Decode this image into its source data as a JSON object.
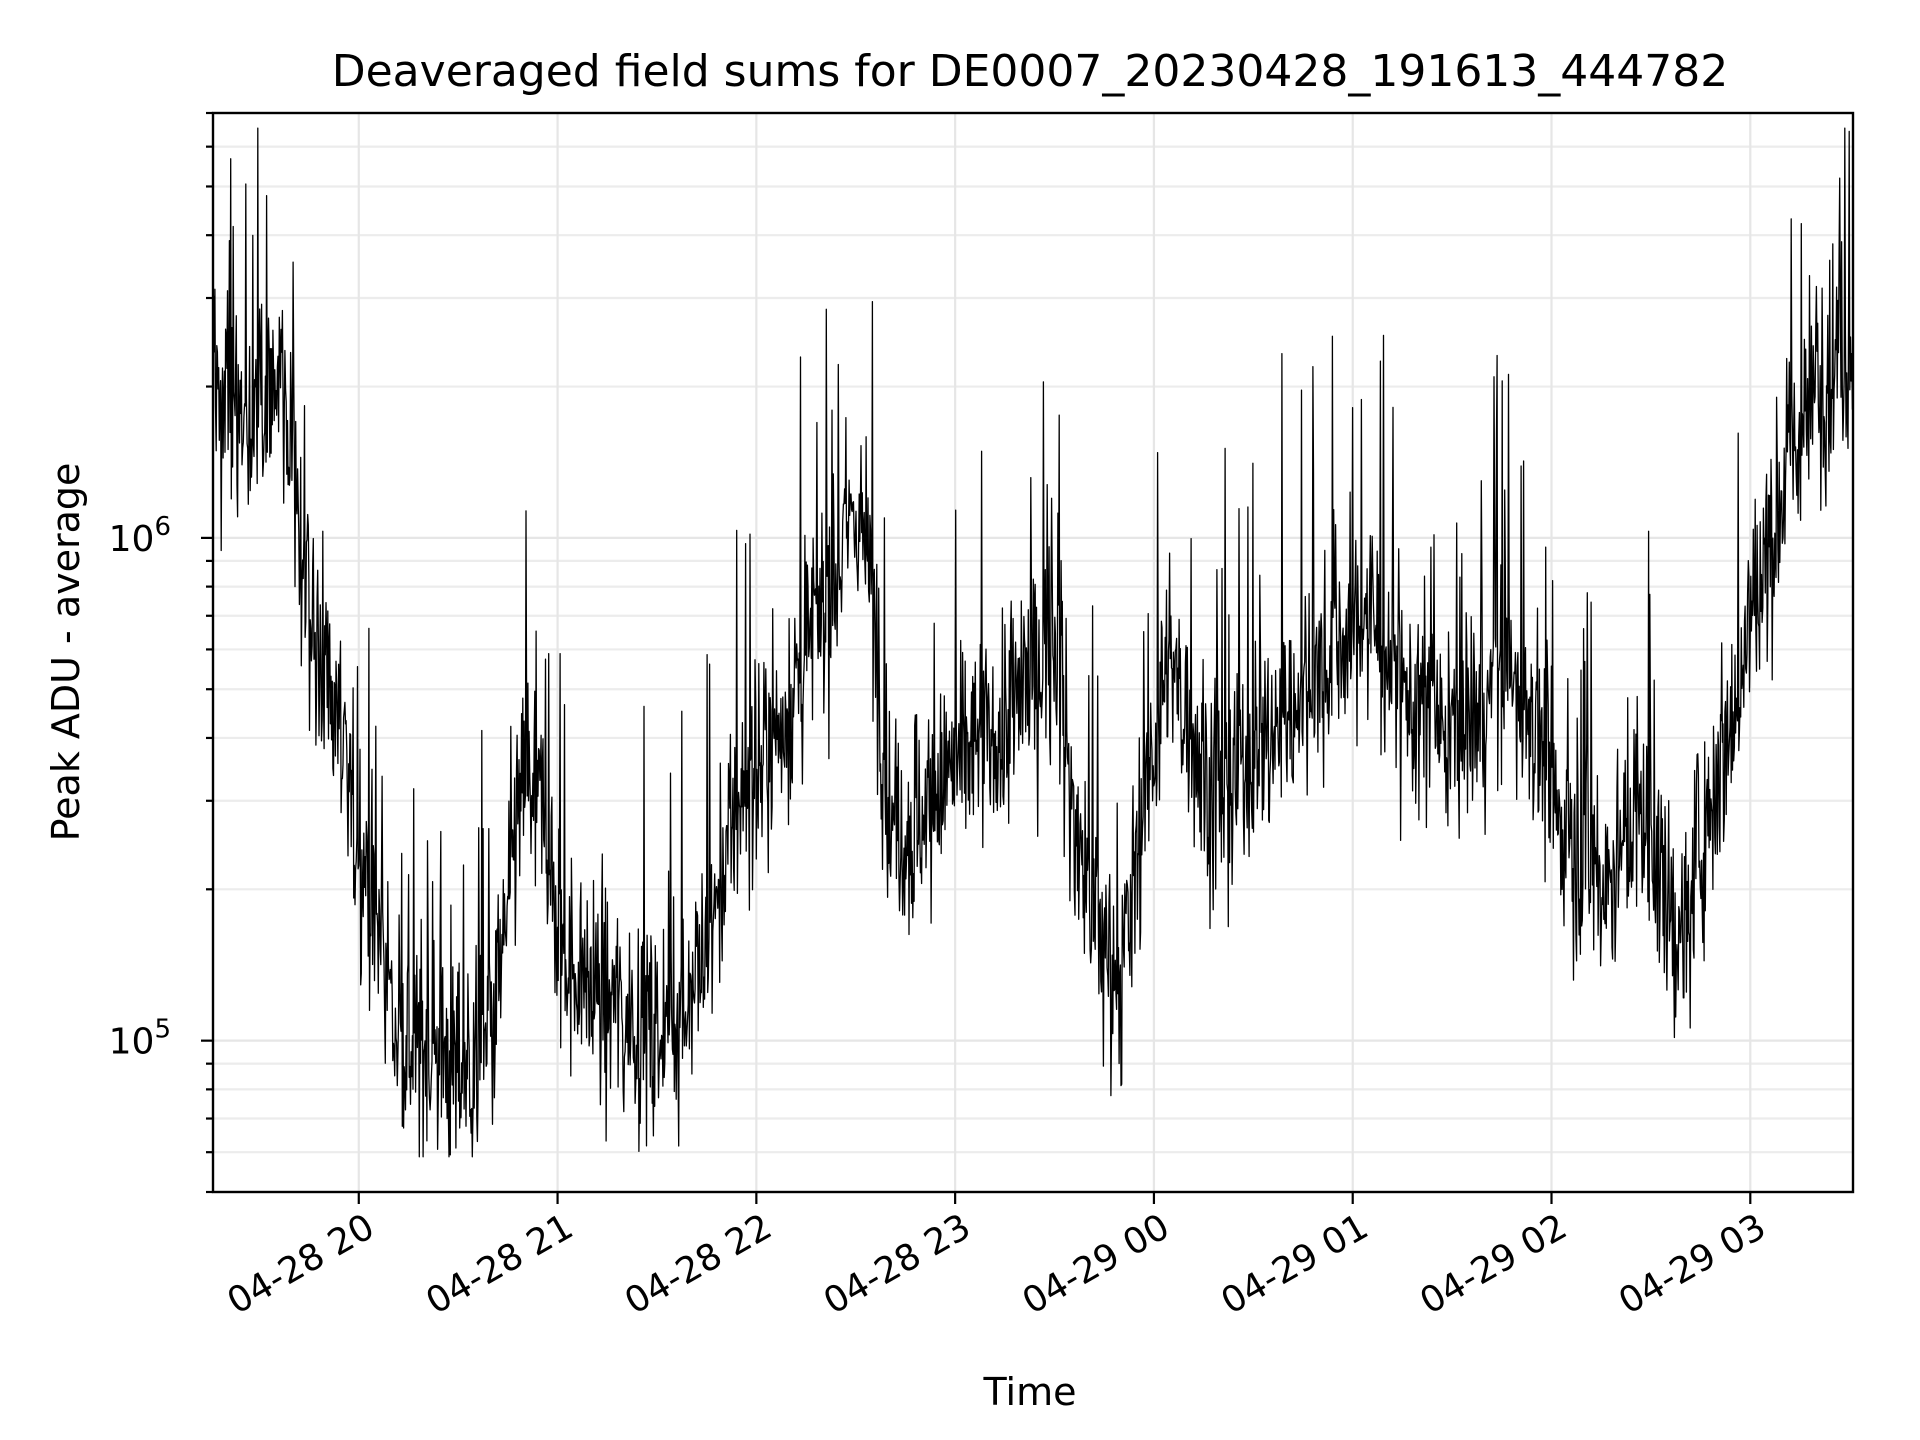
{
  "chart_data": {
    "type": "line",
    "title": "Deaveraged field sums for DE0007_20230428_191613_444782",
    "xlabel": "Time",
    "ylabel": "Peak ADU - average",
    "yscale": "log",
    "ylim": [
      50000,
      7000000
    ],
    "xlim": [
      "2023-04-28 19:16",
      "2023-04-29 03:31"
    ],
    "grid": true,
    "x_ticks": [
      {
        "value": "2023-04-28 20:00",
        "label": "04-28 20"
      },
      {
        "value": "2023-04-28 21:00",
        "label": "04-28 21"
      },
      {
        "value": "2023-04-28 22:00",
        "label": "04-28 22"
      },
      {
        "value": "2023-04-28 23:00",
        "label": "04-28 23"
      },
      {
        "value": "2023-04-29 00:00",
        "label": "04-29 00"
      },
      {
        "value": "2023-04-29 01:00",
        "label": "04-29 01"
      },
      {
        "value": "2023-04-29 02:00",
        "label": "04-29 02"
      },
      {
        "value": "2023-04-29 03:00",
        "label": "04-29 03"
      }
    ],
    "y_ticks": [
      {
        "value": 100000,
        "label_base": "10",
        "label_exp": "5"
      },
      {
        "value": 1000000,
        "label_base": "10",
        "label_exp": "6"
      }
    ],
    "series_color": "#000000",
    "series": [
      {
        "x": [
          "2023-04-28 19:16",
          "2023-04-28 19:20",
          "2023-04-28 19:25",
          "2023-04-28 19:30",
          "2023-04-28 19:35",
          "2023-04-28 19:40",
          "2023-04-28 19:45",
          "2023-04-28 19:50",
          "2023-04-28 19:55",
          "2023-04-28 20:00",
          "2023-04-28 20:05",
          "2023-04-28 20:10",
          "2023-04-28 20:15",
          "2023-04-28 20:20",
          "2023-04-28 20:25",
          "2023-04-28 20:30",
          "2023-04-28 20:35",
          "2023-04-28 20:40",
          "2023-04-28 20:45",
          "2023-04-28 20:50",
          "2023-04-28 20:55",
          "2023-04-28 21:00",
          "2023-04-28 21:05",
          "2023-04-28 21:10",
          "2023-04-28 21:15",
          "2023-04-28 21:20",
          "2023-04-28 21:25",
          "2023-04-28 21:30",
          "2023-04-28 21:35",
          "2023-04-28 21:40",
          "2023-04-28 21:45",
          "2023-04-28 21:50",
          "2023-04-28 21:55",
          "2023-04-28 22:00",
          "2023-04-28 22:05",
          "2023-04-28 22:10",
          "2023-04-28 22:15",
          "2023-04-28 22:20",
          "2023-04-28 22:25",
          "2023-04-28 22:30",
          "2023-04-28 22:35",
          "2023-04-28 22:40",
          "2023-04-28 22:45",
          "2023-04-28 22:50",
          "2023-04-28 22:55",
          "2023-04-28 23:00",
          "2023-04-28 23:05",
          "2023-04-28 23:10",
          "2023-04-28 23:15",
          "2023-04-28 23:20",
          "2023-04-28 23:25",
          "2023-04-28 23:30",
          "2023-04-28 23:35",
          "2023-04-28 23:40",
          "2023-04-28 23:45",
          "2023-04-28 23:50",
          "2023-04-28 23:55",
          "2023-04-29 00:00",
          "2023-04-29 00:05",
          "2023-04-29 00:10",
          "2023-04-29 00:15",
          "2023-04-29 00:20",
          "2023-04-29 00:25",
          "2023-04-29 00:30",
          "2023-04-29 00:35",
          "2023-04-29 00:40",
          "2023-04-29 00:45",
          "2023-04-29 00:50",
          "2023-04-29 00:55",
          "2023-04-29 01:00",
          "2023-04-29 01:05",
          "2023-04-29 01:10",
          "2023-04-29 01:15",
          "2023-04-29 01:20",
          "2023-04-29 01:25",
          "2023-04-29 01:30",
          "2023-04-29 01:35",
          "2023-04-29 01:40",
          "2023-04-29 01:45",
          "2023-04-29 01:50",
          "2023-04-29 01:55",
          "2023-04-29 02:00",
          "2023-04-29 02:05",
          "2023-04-29 02:10",
          "2023-04-29 02:15",
          "2023-04-29 02:20",
          "2023-04-29 02:25",
          "2023-04-29 02:30",
          "2023-04-29 02:35",
          "2023-04-29 02:40",
          "2023-04-29 02:45",
          "2023-04-29 02:50",
          "2023-04-29 02:55",
          "2023-04-29 03:00",
          "2023-04-29 03:05",
          "2023-04-29 03:10",
          "2023-04-29 03:15",
          "2023-04-29 03:20",
          "2023-04-29 03:25",
          "2023-04-29 03:31"
        ],
        "y": [
          2000000,
          2200000,
          1700000,
          1800000,
          2100000,
          1500000,
          700000,
          550000,
          380000,
          250000,
          170000,
          120000,
          100000,
          95000,
          90000,
          88000,
          90000,
          100000,
          180000,
          350000,
          300000,
          160000,
          140000,
          130000,
          120000,
          115000,
          110000,
          108000,
          115000,
          130000,
          150000,
          220000,
          300000,
          350000,
          400000,
          480000,
          600000,
          750000,
          900000,
          1200000,
          800000,
          300000,
          260000,
          280000,
          320000,
          350000,
          380000,
          400000,
          420000,
          500000,
          550000,
          650000,
          300000,
          200000,
          150000,
          130000,
          250000,
          400000,
          550000,
          450000,
          350000,
          300000,
          320000,
          380000,
          400000,
          450000,
          500000,
          550000,
          600000,
          650000,
          700000,
          600000,
          500000,
          450000,
          420000,
          400000,
          420000,
          480000,
          550000,
          500000,
          450000,
          300000,
          250000,
          220000,
          210000,
          230000,
          280000,
          260000,
          180000,
          160000,
          250000,
          350000,
          450000,
          700000,
          900000,
          1300000,
          1600000,
          2000000,
          2300000,
          2400000
        ],
        "jitter": 0.85,
        "seed": 444782
      }
    ]
  }
}
